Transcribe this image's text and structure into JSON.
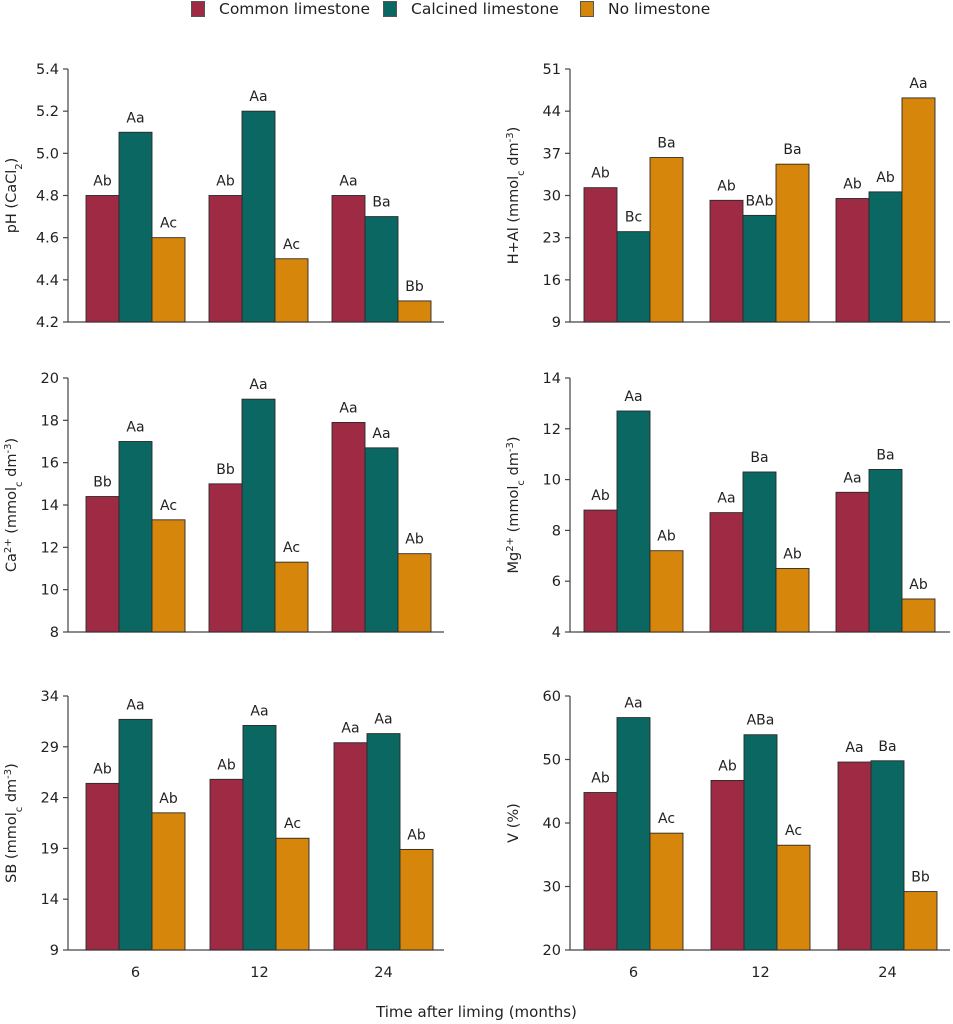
{
  "legend": [
    {
      "name": "Common limestone",
      "color": "#9e2a44"
    },
    {
      "name": "Calcined limestone",
      "color": "#0b6762"
    },
    {
      "name": "No limestone",
      "color": "#d6870b"
    }
  ],
  "xaxis_title": "Time after liming (months)",
  "chart_data": [
    {
      "type": "bar",
      "panel": "top-left",
      "ylabel": "pH (CaCl2)",
      "ylabel_parts": {
        "main": "pH (CaCl",
        "sub": "2",
        "end": ")"
      },
      "categories": [
        "6",
        "12",
        "24"
      ],
      "show_xticks": false,
      "ylim": [
        4.2,
        5.4
      ],
      "yticks": [
        "4.2",
        "4.4",
        "4.6",
        "4.8",
        "5.0",
        "5.2",
        "5.4"
      ],
      "series": [
        {
          "name": "Common limestone",
          "values": [
            4.8,
            4.8,
            4.8
          ],
          "labels": [
            "Ab",
            "Ab",
            "Aa"
          ]
        },
        {
          "name": "Calcined limestone",
          "values": [
            5.1,
            5.2,
            4.7
          ],
          "labels": [
            "Aa",
            "Aa",
            "Ba"
          ]
        },
        {
          "name": "No limestone",
          "values": [
            4.6,
            4.5,
            4.3
          ],
          "labels": [
            "Ac",
            "Ac",
            "Bb"
          ]
        }
      ]
    },
    {
      "type": "bar",
      "panel": "top-right",
      "ylabel": "H+Al (mmolc dm-3)",
      "ylabel_parts": {
        "main": "H+Al (mmol",
        "sub": "c",
        "mid": " dm",
        "sup": "-3",
        "end": ")"
      },
      "categories": [
        "6",
        "12",
        "24"
      ],
      "show_xticks": false,
      "ylim": [
        9,
        51
      ],
      "yticks": [
        "9",
        "16",
        "23",
        "30",
        "37",
        "44",
        "51"
      ],
      "series": [
        {
          "name": "Common limestone",
          "values": [
            31.3,
            29.2,
            29.5
          ],
          "labels": [
            "Ab",
            "Ab",
            "Ab"
          ]
        },
        {
          "name": "Calcined limestone",
          "values": [
            24.0,
            26.7,
            30.6
          ],
          "labels": [
            "Bc",
            "BAb",
            "Ab"
          ]
        },
        {
          "name": "No limestone",
          "values": [
            36.3,
            35.2,
            46.2
          ],
          "labels": [
            "Ba",
            "Ba",
            "Aa"
          ]
        }
      ]
    },
    {
      "type": "bar",
      "panel": "middle-left",
      "ylabel": "Ca2+ (mmolc dm-3)",
      "ylabel_parts": {
        "main": "Ca",
        "sup1": "2+",
        "mid0": " (mmol",
        "sub": "c",
        "mid": " dm",
        "sup": "-3",
        "end": ")"
      },
      "categories": [
        "6",
        "12",
        "24"
      ],
      "show_xticks": false,
      "ylim": [
        8,
        20
      ],
      "yticks": [
        "8",
        "10",
        "12",
        "14",
        "16",
        "18",
        "20"
      ],
      "series": [
        {
          "name": "Common limestone",
          "values": [
            14.4,
            15.0,
            17.9
          ],
          "labels": [
            "Bb",
            "Bb",
            "Aa"
          ]
        },
        {
          "name": "Calcined limestone",
          "values": [
            17.0,
            19.0,
            16.7
          ],
          "labels": [
            "Aa",
            "Aa",
            "Aa"
          ]
        },
        {
          "name": "No limestone",
          "values": [
            13.3,
            11.3,
            11.7
          ],
          "labels": [
            "Ac",
            "Ac",
            "Ab"
          ]
        }
      ]
    },
    {
      "type": "bar",
      "panel": "middle-right",
      "ylabel": "Mg2+ (mmolc dm-3)",
      "ylabel_parts": {
        "main": "Mg",
        "sup1": "2+",
        "mid0": " (mmol",
        "sub": "c",
        "mid": " dm",
        "sup": "-3",
        "end": ")"
      },
      "categories": [
        "6",
        "12",
        "24"
      ],
      "show_xticks": false,
      "ylim": [
        4,
        14
      ],
      "yticks": [
        "4",
        "6",
        "8",
        "10",
        "12",
        "14"
      ],
      "series": [
        {
          "name": "Common limestone",
          "values": [
            8.8,
            8.7,
            9.5
          ],
          "labels": [
            "Ab",
            "Aa",
            "Aa"
          ]
        },
        {
          "name": "Calcined limestone",
          "values": [
            12.7,
            10.3,
            10.4
          ],
          "labels": [
            "Aa",
            "Ba",
            "Ba"
          ]
        },
        {
          "name": "No limestone",
          "values": [
            7.2,
            6.5,
            5.3
          ],
          "labels": [
            "Ab",
            "Ab",
            "Ab"
          ]
        }
      ]
    },
    {
      "type": "bar",
      "panel": "bottom-left",
      "ylabel": "SB (mmolc dm-3)",
      "ylabel_parts": {
        "main": "SB (mmol",
        "sub": "c",
        "mid": " dm",
        "sup": "-3",
        "end": ")"
      },
      "categories": [
        "6",
        "12",
        "24"
      ],
      "show_xticks": true,
      "ylim": [
        9,
        34
      ],
      "yticks": [
        "9",
        "14",
        "19",
        "24",
        "29",
        "34"
      ],
      "series": [
        {
          "name": "Common limestone",
          "values": [
            25.4,
            25.8,
            29.4
          ],
          "labels": [
            "Ab",
            "Ab",
            "Aa"
          ]
        },
        {
          "name": "Calcined limestone",
          "values": [
            31.7,
            31.1,
            30.3
          ],
          "labels": [
            "Aa",
            "Aa",
            "Aa"
          ]
        },
        {
          "name": "No limestone",
          "values": [
            22.5,
            20.0,
            18.9
          ],
          "labels": [
            "Ab",
            "Ac",
            "Ab"
          ]
        }
      ]
    },
    {
      "type": "bar",
      "panel": "bottom-right",
      "ylabel": "V (%)",
      "ylabel_parts": {
        "main": "V (%)"
      },
      "categories": [
        "6",
        "12",
        "24"
      ],
      "show_xticks": true,
      "ylim": [
        20,
        60
      ],
      "yticks": [
        "20",
        "30",
        "40",
        "50",
        "60"
      ],
      "series": [
        {
          "name": "Common limestone",
          "values": [
            44.8,
            46.7,
            49.6
          ],
          "labels": [
            "Ab",
            "Ab",
            "Aa"
          ]
        },
        {
          "name": "Calcined limestone",
          "values": [
            56.6,
            53.9,
            49.8
          ],
          "labels": [
            "Aa",
            "ABa",
            "Ba"
          ]
        },
        {
          "name": "No limestone",
          "values": [
            38.4,
            36.5,
            29.2
          ],
          "labels": [
            "Ac",
            "Ac",
            "Bb"
          ]
        }
      ]
    }
  ]
}
